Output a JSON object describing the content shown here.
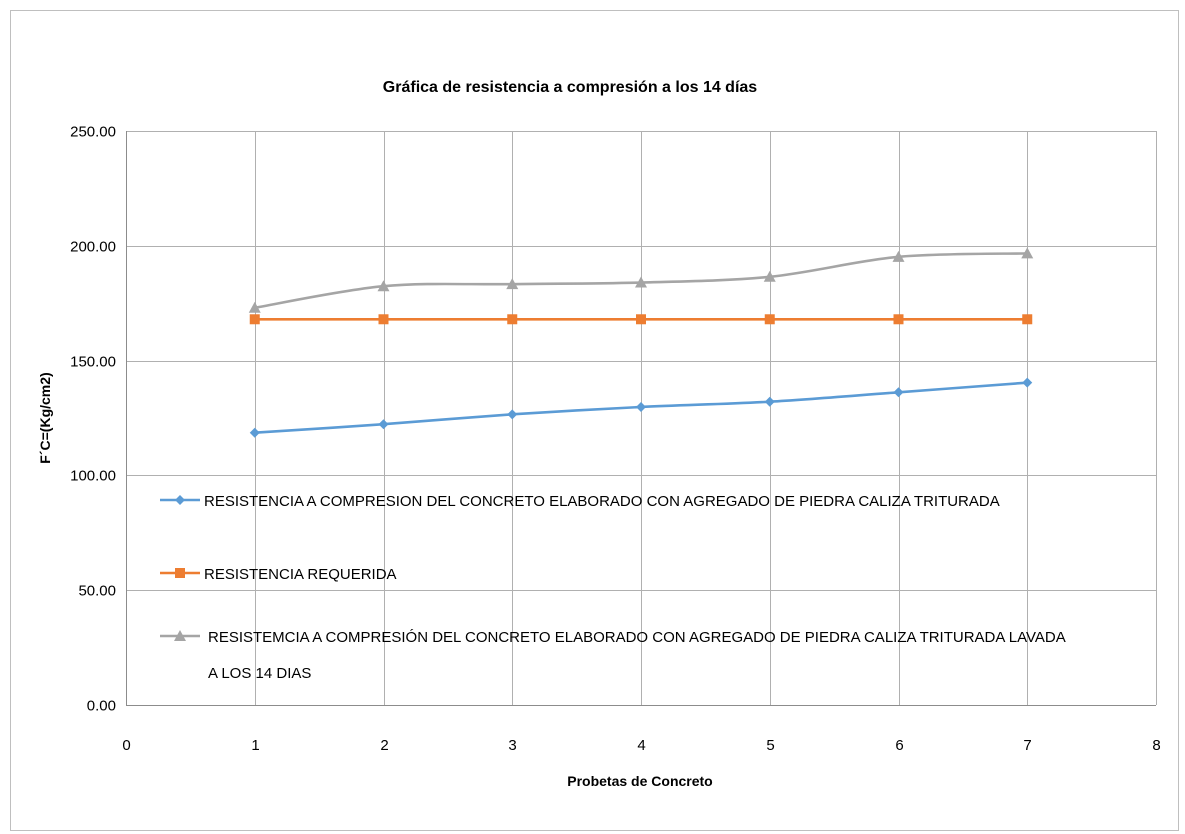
{
  "chart_data": {
    "type": "line",
    "title": "Gráfica de resistencia a compresión a los 14 días",
    "xlabel": "Probetas de Concreto",
    "ylabel": "F´C=(Kg/cm2)",
    "xlim": [
      0,
      8
    ],
    "ylim": [
      0,
      250
    ],
    "x_ticks": [
      "0",
      "1",
      "2",
      "3",
      "4",
      "5",
      "6",
      "7",
      "8"
    ],
    "y_ticks": [
      "0.00",
      "50.00",
      "100.00",
      "150.00",
      "200.00",
      "250.00"
    ],
    "grid": true,
    "legend_position": "inside-lower-left",
    "series": [
      {
        "name": "RESISTENCIA A COMPRESION DEL CONCRETO ELABORADO CON AGREGADO DE PIEDRA CALIZA TRITURADA",
        "color": "#5b9bd5",
        "marker": "diamond",
        "x": [
          1,
          2,
          3,
          4,
          5,
          6,
          7
        ],
        "y": [
          118.6,
          122.3,
          126.6,
          129.8,
          132.1,
          136.2,
          140.4
        ]
      },
      {
        "name": "RESISTENCIA REQUERIDA",
        "color": "#ed7d31",
        "marker": "square",
        "x": [
          1,
          2,
          3,
          4,
          5,
          6,
          7
        ],
        "y": [
          168,
          168,
          168,
          168,
          168,
          168,
          168
        ]
      },
      {
        "name": "RESISTEMCIA A COMPRESIÓN DEL CONCRETO ELABORADO CON AGREGADO DE PIEDRA CALIZA TRITURADA LAVADA A LOS 14 DIAS",
        "name_lines": [
          "RESISTEMCIA A COMPRESIÓN DEL CONCRETO ELABORADO CON AGREGADO DE PIEDRA CALIZA TRITURADA LAVADA",
          "A LOS 14 DIAS"
        ],
        "color": "#a5a5a5",
        "marker": "triangle",
        "x": [
          1,
          2,
          3,
          4,
          5,
          6,
          7
        ],
        "y": [
          173.0,
          182.4,
          183.3,
          184.0,
          186.5,
          195.2,
          196.7
        ]
      }
    ]
  }
}
